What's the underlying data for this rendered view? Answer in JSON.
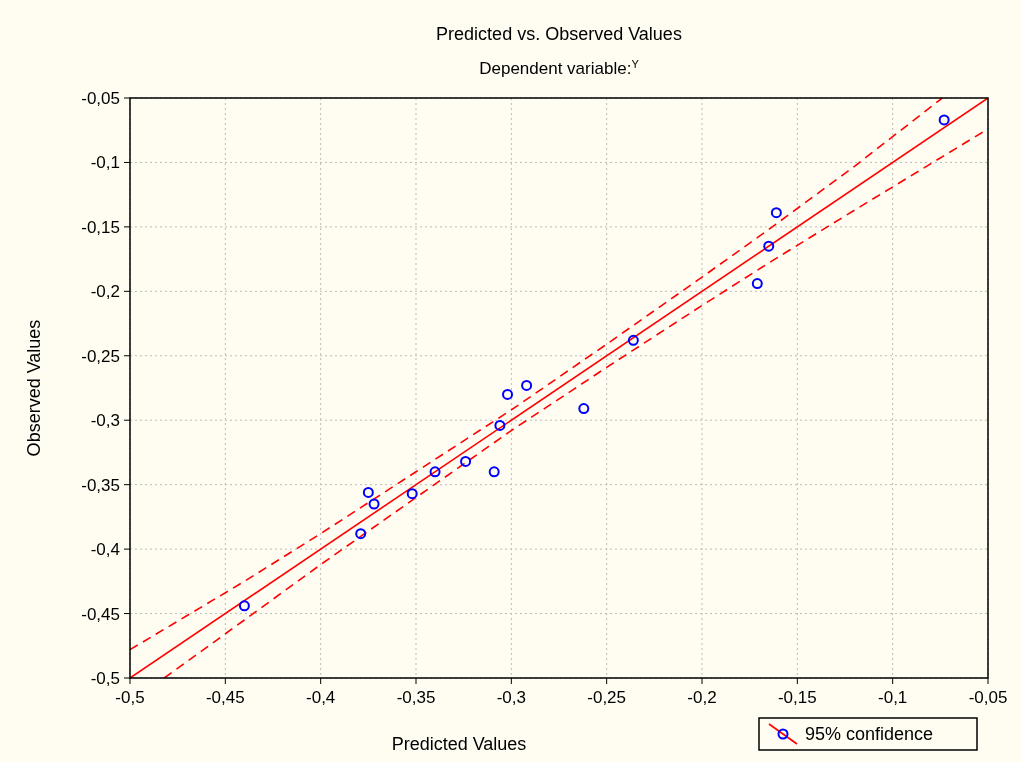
{
  "chart_data": {
    "type": "scatter",
    "title": "Predicted vs. Observed Values",
    "subtitle": "Dependent variable:$^{Y}$",
    "xlabel": "Predicted Values",
    "ylabel": "Observed Values",
    "xlim": [
      -0.5,
      -0.05
    ],
    "ylim": [
      -0.5,
      -0.05
    ],
    "xticks": [
      {
        "value": -0.5,
        "label": "-0,5"
      },
      {
        "value": -0.45,
        "label": "-0,45"
      },
      {
        "value": -0.4,
        "label": "-0,4"
      },
      {
        "value": -0.35,
        "label": "-0,35"
      },
      {
        "value": -0.3,
        "label": "-0,3"
      },
      {
        "value": -0.25,
        "label": "-0,25"
      },
      {
        "value": -0.2,
        "label": "-0,2"
      },
      {
        "value": -0.15,
        "label": "-0,15"
      },
      {
        "value": -0.1,
        "label": "-0,1"
      },
      {
        "value": -0.05,
        "label": "-0,05"
      }
    ],
    "yticks": [
      {
        "value": -0.5,
        "label": "-0,5"
      },
      {
        "value": -0.45,
        "label": "-0,45"
      },
      {
        "value": -0.4,
        "label": "-0,4"
      },
      {
        "value": -0.35,
        "label": "-0,35"
      },
      {
        "value": -0.3,
        "label": "-0,3"
      },
      {
        "value": -0.25,
        "label": "-0,25"
      },
      {
        "value": -0.2,
        "label": "-0,2"
      },
      {
        "value": -0.15,
        "label": "-0,15"
      },
      {
        "value": -0.1,
        "label": "-0,1"
      },
      {
        "value": -0.05,
        "label": "-0,05"
      }
    ],
    "grid": true,
    "legend": "bottom right",
    "series": [
      {
        "type": "line",
        "marker": "none",
        "color": "#ff0000",
        "line_style": "solid",
        "x": [
          -0.5,
          -0.05
        ],
        "values": [
          -0.5,
          -0.05
        ]
      },
      {
        "type": "line",
        "marker": "none",
        "color": "#ff0000",
        "line_style": "dashed",
        "x": [
          -0.5,
          -0.44,
          -0.4,
          -0.35,
          -0.3,
          -0.25,
          -0.2,
          -0.165,
          -0.12,
          -0.074
        ],
        "values": [
          -0.478,
          -0.425,
          -0.388,
          -0.34,
          -0.292,
          -0.241,
          -0.189,
          -0.152,
          -0.103,
          -0.05
        ]
      },
      {
        "type": "line",
        "marker": "none",
        "color": "#ff0000",
        "line_style": "dashed",
        "x": [
          -0.482,
          -0.44,
          -0.4,
          -0.35,
          -0.3,
          -0.25,
          -0.2,
          -0.165,
          -0.12,
          -0.05
        ],
        "values": [
          -0.5,
          -0.455,
          -0.412,
          -0.36,
          -0.308,
          -0.259,
          -0.211,
          -0.178,
          -0.137,
          -0.074
        ]
      },
      {
        "marker": "circle",
        "name": "95% confidence",
        "color": "#0000ff",
        "x": [
          -0.44,
          -0.379,
          -0.375,
          -0.372,
          -0.352,
          -0.34,
          -0.324,
          -0.309,
          -0.306,
          -0.302,
          -0.292,
          -0.262,
          -0.236,
          -0.171,
          -0.165,
          -0.161,
          -0.073
        ],
        "values": [
          -0.444,
          -0.388,
          -0.356,
          -0.365,
          -0.357,
          -0.34,
          -0.332,
          -0.34,
          -0.304,
          -0.28,
          -0.273,
          -0.291,
          -0.238,
          -0.194,
          -0.165,
          -0.139,
          -0.067
        ]
      }
    ]
  }
}
